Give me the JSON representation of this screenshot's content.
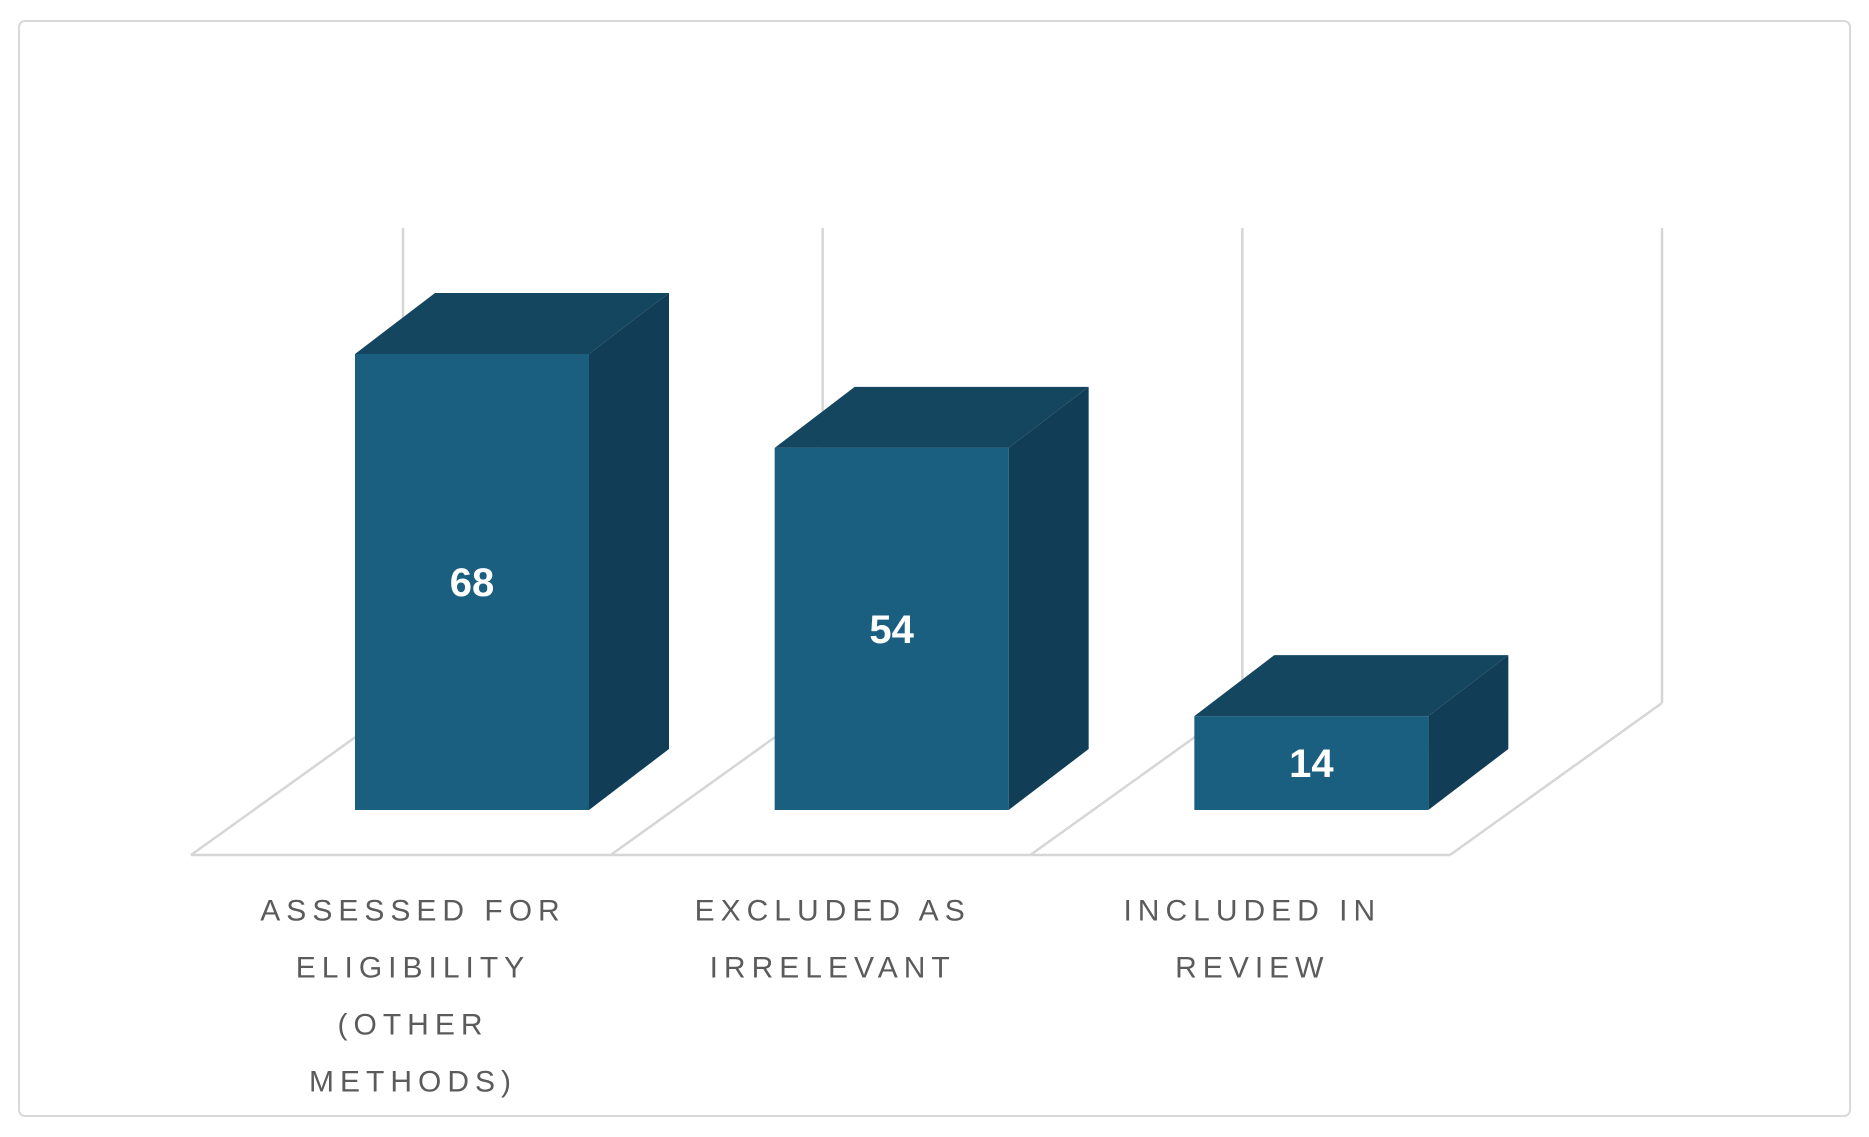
{
  "chart_data": {
    "type": "bar",
    "style": "3d-column",
    "title": "",
    "xlabel": "",
    "ylabel": "",
    "legend": "none",
    "value_axis_visible": false,
    "grid": "vertical-backwall-gridlines",
    "ylim": [
      0,
      70
    ],
    "categories": [
      "ASSESSED FOR ELIGIBILITY (OTHER METHODS)",
      "EXCLUDED AS IRRELEVANT",
      "INCLUDED IN REVIEW"
    ],
    "category_label_lines": [
      [
        "ASSESSED FOR",
        "ELIGIBILITY",
        "(OTHER",
        "METHODS)"
      ],
      [
        "EXCLUDED AS",
        "IRRELEVANT"
      ],
      [
        "INCLUDED IN",
        "REVIEW"
      ]
    ],
    "values": [
      68,
      54,
      14
    ],
    "data_labels": [
      "68",
      "54",
      "14"
    ],
    "colors": {
      "bar_front": "#1B5F80",
      "bar_top": "#14465F",
      "bar_side": "#113E56",
      "gridline": "#D6D6D6",
      "floor_line": "#D6D6D6",
      "frame_border": "#D9D9D9",
      "background": "#FFFFFF",
      "category_text": "#5B5B5B",
      "value_text": "#FFFFFF"
    }
  }
}
